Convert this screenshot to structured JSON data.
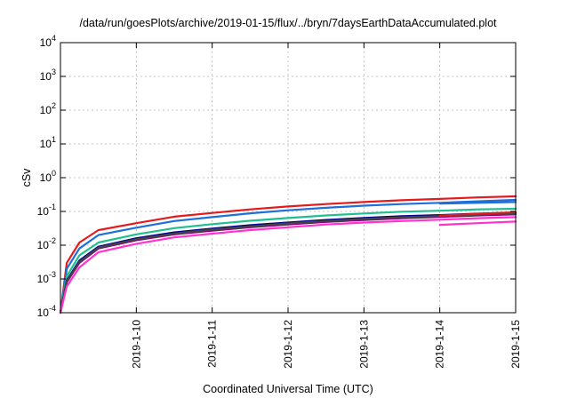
{
  "chart_data": {
    "type": "line",
    "title": "/data/run/goesPlots/archive/2019-01-15/flux/../bryn/7daysEarthDataAccumulated.plot",
    "xlabel": "Coordinated Universal Time (UTC)",
    "ylabel": "cSv",
    "x_scale": "time",
    "y_scale": "log",
    "xlim": [
      "2019-01-09T00:00",
      "2019-01-15T00:00"
    ],
    "ylim": [
      0.0001,
      10000
    ],
    "grid": true,
    "legend": "none",
    "x_tick_labels": [
      "2019-1-10",
      "2019-1-11",
      "2019-1-12",
      "2019-1-13",
      "2019-1-14",
      "2019-1-15"
    ],
    "y_tick_labels": [
      {
        "base": "10",
        "exp": "-4"
      },
      {
        "base": "10",
        "exp": "-3"
      },
      {
        "base": "10",
        "exp": "-2"
      },
      {
        "base": "10",
        "exp": "-1"
      },
      {
        "base": "10",
        "exp": "0"
      },
      {
        "base": "10",
        "exp": "1"
      },
      {
        "base": "10",
        "exp": "2"
      },
      {
        "base": "10",
        "exp": "3"
      },
      {
        "base": "10",
        "exp": "4"
      }
    ],
    "series": [
      {
        "color": "#e41a1c",
        "x": [
          "2019-01-09T00:00",
          "2019-01-09T02:00",
          "2019-01-09T06:00",
          "2019-01-09T12:00",
          "2019-01-10T00:00",
          "2019-01-10T12:00",
          "2019-01-11T00:00",
          "2019-01-11T12:00",
          "2019-01-12T00:00",
          "2019-01-12T12:00",
          "2019-01-13T00:00",
          "2019-01-13T12:00",
          "2019-01-14T00:00",
          "2019-01-14T12:00",
          "2019-01-15T00:00"
        ],
        "y": [
          0.0001,
          0.003,
          0.012,
          0.028,
          0.045,
          0.07,
          0.09,
          0.115,
          0.14,
          0.165,
          0.19,
          0.215,
          0.235,
          0.26,
          0.28
        ]
      },
      {
        "color": "#1f6fd8",
        "x": [
          "2019-01-09T00:00",
          "2019-01-09T02:00",
          "2019-01-09T06:00",
          "2019-01-09T12:00",
          "2019-01-10T00:00",
          "2019-01-10T12:00",
          "2019-01-11T00:00",
          "2019-01-11T12:00",
          "2019-01-12T00:00",
          "2019-01-12T12:00",
          "2019-01-13T00:00",
          "2019-01-13T12:00",
          "2019-01-14T00:00",
          "2019-01-14T12:00",
          "2019-01-15T00:00"
        ],
        "y": [
          0.0001,
          0.002,
          0.008,
          0.02,
          0.033,
          0.052,
          0.068,
          0.088,
          0.108,
          0.128,
          0.148,
          0.165,
          0.18,
          0.2,
          0.22
        ]
      },
      {
        "color": "#1fbf8f",
        "x": [
          "2019-01-09T00:00",
          "2019-01-09T02:00",
          "2019-01-09T06:00",
          "2019-01-09T12:00",
          "2019-01-10T00:00",
          "2019-01-10T12:00",
          "2019-01-11T00:00",
          "2019-01-11T12:00",
          "2019-01-12T00:00",
          "2019-01-12T12:00",
          "2019-01-13T00:00",
          "2019-01-13T12:00",
          "2019-01-14T00:00",
          "2019-01-14T12:00",
          "2019-01-15T00:00"
        ],
        "y": [
          0.0001,
          0.0012,
          0.005,
          0.012,
          0.021,
          0.032,
          0.042,
          0.053,
          0.064,
          0.076,
          0.087,
          0.098,
          0.105,
          0.115,
          0.12
        ]
      },
      {
        "color": "#00008b",
        "x": [
          "2019-01-09T00:00",
          "2019-01-09T02:00",
          "2019-01-09T06:00",
          "2019-01-09T12:00",
          "2019-01-10T00:00",
          "2019-01-10T12:00",
          "2019-01-11T00:00",
          "2019-01-11T12:00",
          "2019-01-12T00:00",
          "2019-01-12T12:00",
          "2019-01-13T00:00",
          "2019-01-13T12:00",
          "2019-01-14T00:00",
          "2019-01-14T12:00",
          "2019-01-15T00:00"
        ],
        "y": [
          0.0001,
          0.0009,
          0.0035,
          0.009,
          0.016,
          0.024,
          0.031,
          0.039,
          0.047,
          0.056,
          0.064,
          0.072,
          0.078,
          0.086,
          0.092
        ]
      },
      {
        "color": "#8b008b",
        "x": [
          "2019-01-09T00:00",
          "2019-01-09T02:00",
          "2019-01-09T06:00",
          "2019-01-09T12:00",
          "2019-01-10T00:00",
          "2019-01-10T12:00",
          "2019-01-11T00:00",
          "2019-01-11T12:00",
          "2019-01-12T00:00",
          "2019-01-12T12:00",
          "2019-01-13T00:00",
          "2019-01-13T12:00",
          "2019-01-14T00:00",
          "2019-01-14T12:00",
          "2019-01-15T00:00"
        ],
        "y": [
          0.0001,
          0.0008,
          0.003,
          0.008,
          0.014,
          0.021,
          0.027,
          0.034,
          0.041,
          0.049,
          0.056,
          0.063,
          0.069,
          0.076,
          0.082
        ]
      },
      {
        "color": "#444444",
        "x": [
          "2019-01-09T00:00",
          "2019-01-09T02:00",
          "2019-01-09T06:00",
          "2019-01-09T12:00",
          "2019-01-10T00:00",
          "2019-01-10T12:00",
          "2019-01-11T00:00",
          "2019-01-11T12:00",
          "2019-01-12T00:00",
          "2019-01-12T12:00",
          "2019-01-13T00:00",
          "2019-01-13T12:00",
          "2019-01-14T00:00",
          "2019-01-14T12:00",
          "2019-01-15T00:00"
        ],
        "y": [
          0.0001,
          0.00085,
          0.0032,
          0.0085,
          0.015,
          0.022,
          0.029,
          0.036,
          0.044,
          0.052,
          0.06,
          0.067,
          0.073,
          0.08,
          0.086
        ]
      },
      {
        "color": "#ff33cc",
        "x": [
          "2019-01-09T00:00",
          "2019-01-09T02:00",
          "2019-01-09T06:00",
          "2019-01-09T12:00",
          "2019-01-10T00:00",
          "2019-01-10T12:00",
          "2019-01-11T00:00",
          "2019-01-11T12:00",
          "2019-01-12T00:00",
          "2019-01-12T12:00",
          "2019-01-13T00:00",
          "2019-01-13T12:00",
          "2019-01-14T00:00",
          "2019-01-14T12:00",
          "2019-01-15T00:00"
        ],
        "y": [
          0.0001,
          0.0006,
          0.0022,
          0.0062,
          0.011,
          0.017,
          0.022,
          0.028,
          0.034,
          0.041,
          0.047,
          0.052,
          0.057,
          0.063,
          0.068
        ]
      },
      {
        "color": "#ff33cc",
        "x": [
          "2019-01-14T00:00",
          "2019-01-14T12:00",
          "2019-01-15T00:00"
        ],
        "y": [
          0.04,
          0.045,
          0.05
        ]
      },
      {
        "color": "#e41a1c",
        "x": [
          "2019-01-14T00:00",
          "2019-01-14T12:00",
          "2019-01-15T00:00"
        ],
        "y": [
          0.075,
          0.085,
          0.095
        ]
      },
      {
        "color": "#1f6fd8",
        "x": [
          "2019-01-14T00:00",
          "2019-01-14T12:00",
          "2019-01-15T00:00"
        ],
        "y": [
          0.17,
          0.18,
          0.19
        ]
      }
    ]
  }
}
